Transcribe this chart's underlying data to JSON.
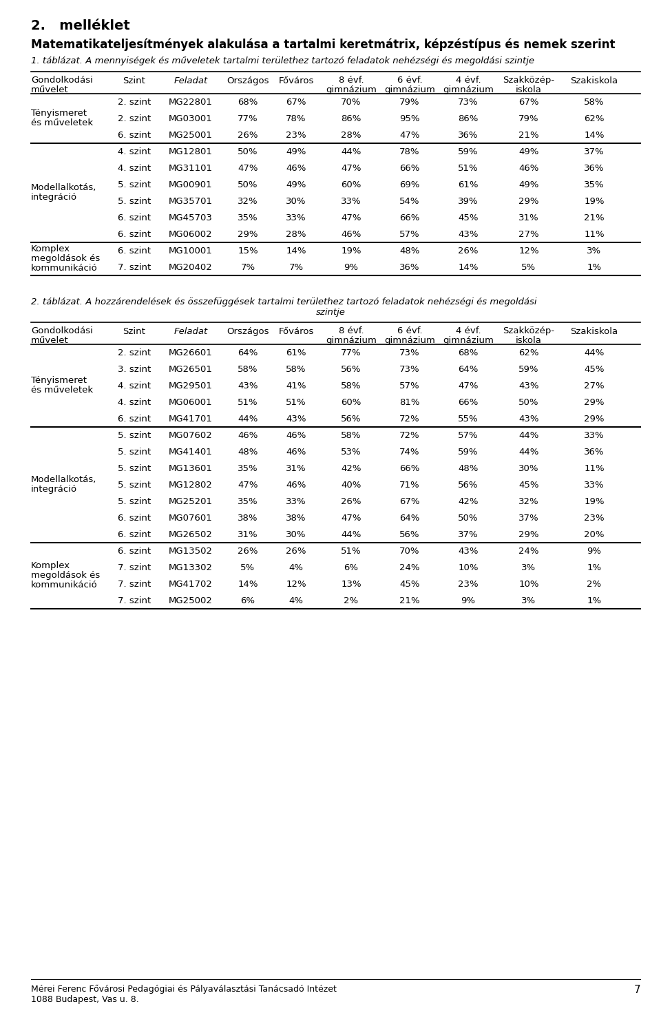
{
  "title_line1": "2.   melléklet",
  "subtitle": "Matematikateljesítmények alakulása a tartalmi keretmátrix, képzéstípus és nemek szerint",
  "table1_caption": "1. táblázat. A mennyiségek és műveletek tartalmi területhez tartozó feladatok nehézségi és megoldási szintje",
  "table2_caption_line1": "2. táblázat. A hozzárendelések és összefüggések tartalmi területhez tartozó feladatok nehézségi és megoldási",
  "table2_caption_line2": "szintje",
  "table1_groups": [
    {
      "group_label": "Tényismeret\nés műveletek",
      "rows": [
        [
          "2. szint",
          "MG22801",
          "68%",
          "67%",
          "70%",
          "79%",
          "73%",
          "67%",
          "58%"
        ],
        [
          "2. szint",
          "MG03001",
          "77%",
          "78%",
          "86%",
          "95%",
          "86%",
          "79%",
          "62%"
        ],
        [
          "6. szint",
          "MG25001",
          "26%",
          "23%",
          "28%",
          "47%",
          "36%",
          "21%",
          "14%"
        ]
      ]
    },
    {
      "group_label": "Modellalkotás,\nintegráció",
      "rows": [
        [
          "4. szint",
          "MG12801",
          "50%",
          "49%",
          "44%",
          "78%",
          "59%",
          "49%",
          "37%"
        ],
        [
          "4. szint",
          "MG31101",
          "47%",
          "46%",
          "47%",
          "66%",
          "51%",
          "46%",
          "36%"
        ],
        [
          "5. szint",
          "MG00901",
          "50%",
          "49%",
          "60%",
          "69%",
          "61%",
          "49%",
          "35%"
        ],
        [
          "5. szint",
          "MG35701",
          "32%",
          "30%",
          "33%",
          "54%",
          "39%",
          "29%",
          "19%"
        ],
        [
          "6. szint",
          "MG45703",
          "35%",
          "33%",
          "47%",
          "66%",
          "45%",
          "31%",
          "21%"
        ],
        [
          "6. szint",
          "MG06002",
          "29%",
          "28%",
          "46%",
          "57%",
          "43%",
          "27%",
          "11%"
        ]
      ]
    },
    {
      "group_label": "Komplex\nmegoldások és\nkommunikáció",
      "rows": [
        [
          "6. szint",
          "MG10001",
          "15%",
          "14%",
          "19%",
          "48%",
          "26%",
          "12%",
          "3%"
        ],
        [
          "7. szint",
          "MG20402",
          "7%",
          "7%",
          "9%",
          "36%",
          "14%",
          "5%",
          "1%"
        ]
      ]
    }
  ],
  "table2_groups": [
    {
      "group_label": "Tényismeret\nés műveletek",
      "rows": [
        [
          "2. szint",
          "MG26601",
          "64%",
          "61%",
          "77%",
          "73%",
          "68%",
          "62%",
          "44%"
        ],
        [
          "3. szint",
          "MG26501",
          "58%",
          "58%",
          "56%",
          "73%",
          "64%",
          "59%",
          "45%"
        ],
        [
          "4. szint",
          "MG29501",
          "43%",
          "41%",
          "58%",
          "57%",
          "47%",
          "43%",
          "27%"
        ],
        [
          "4. szint",
          "MG06001",
          "51%",
          "51%",
          "60%",
          "81%",
          "66%",
          "50%",
          "29%"
        ],
        [
          "6. szint",
          "MG41701",
          "44%",
          "43%",
          "56%",
          "72%",
          "55%",
          "43%",
          "29%"
        ]
      ]
    },
    {
      "group_label": "Modellalkotás,\nintegráció",
      "rows": [
        [
          "5. szint",
          "MG07602",
          "46%",
          "46%",
          "58%",
          "72%",
          "57%",
          "44%",
          "33%"
        ],
        [
          "5. szint",
          "MG41401",
          "48%",
          "46%",
          "53%",
          "74%",
          "59%",
          "44%",
          "36%"
        ],
        [
          "5. szint",
          "MG13601",
          "35%",
          "31%",
          "42%",
          "66%",
          "48%",
          "30%",
          "11%"
        ],
        [
          "5. szint",
          "MG12802",
          "47%",
          "46%",
          "40%",
          "71%",
          "56%",
          "45%",
          "33%"
        ],
        [
          "5. szint",
          "MG25201",
          "35%",
          "33%",
          "26%",
          "67%",
          "42%",
          "32%",
          "19%"
        ],
        [
          "6. szint",
          "MG07601",
          "38%",
          "38%",
          "47%",
          "64%",
          "50%",
          "37%",
          "23%"
        ],
        [
          "6. szint",
          "MG26502",
          "31%",
          "30%",
          "44%",
          "56%",
          "37%",
          "29%",
          "20%"
        ]
      ]
    },
    {
      "group_label": "Komplex\nmegoldások és\nkommunikáció",
      "rows": [
        [
          "6. szint",
          "MG13502",
          "26%",
          "26%",
          "51%",
          "70%",
          "43%",
          "24%",
          "9%"
        ],
        [
          "7. szint",
          "MG13302",
          "5%",
          "4%",
          "6%",
          "24%",
          "10%",
          "3%",
          "1%"
        ],
        [
          "7. szint",
          "MG41702",
          "14%",
          "12%",
          "13%",
          "45%",
          "23%",
          "10%",
          "2%"
        ],
        [
          "7. szint",
          "MG25002",
          "6%",
          "4%",
          "2%",
          "21%",
          "9%",
          "3%",
          "1%"
        ]
      ]
    }
  ],
  "footer_line1": "Mérei Ferenc Fővárosi Pedagógiai és Pályaválasztási Tanácsadó Intézet",
  "footer_line2": "1088 Budapest, Vas u. 8.",
  "page_number": "7"
}
